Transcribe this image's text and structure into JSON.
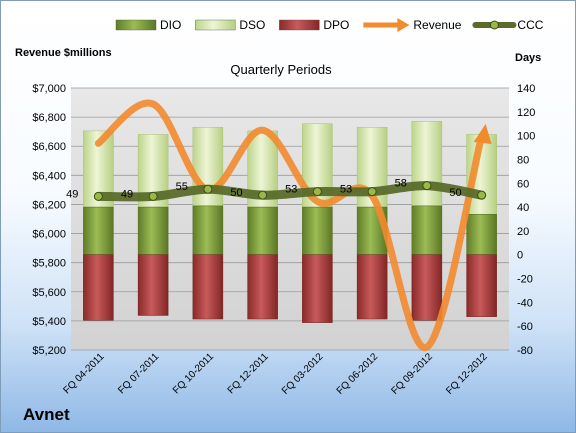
{
  "company": "Avnet",
  "chart_data": {
    "type": "bar",
    "title": "Quarterly Periods",
    "categories": [
      "FQ 04-2011",
      "FQ 07-2011",
      "FQ 10-2011",
      "FQ 12-2011",
      "FQ 03-2012",
      "FQ 06-2012",
      "FQ 09-2012",
      "FQ 12-2012"
    ],
    "left_axis": {
      "label": "Revenue $millions",
      "range": [
        5200,
        7000
      ],
      "ticks": [
        "$5,200",
        "$5,400",
        "$5,600",
        "$5,800",
        "$6,000",
        "$6,200",
        "$6,400",
        "$6,600",
        "$6,800",
        "$7,000"
      ]
    },
    "right_axis": {
      "label": "Days",
      "range": [
        -80,
        140
      ],
      "ticks": [
        "-80",
        "-60",
        "-40",
        "-20",
        "0",
        "20",
        "40",
        "60",
        "80",
        "100",
        "120",
        "140"
      ]
    },
    "series": [
      {
        "name": "DIO",
        "stack_top_days": [
          40,
          40,
          41,
          40,
          40,
          40,
          41,
          34
        ],
        "color": "#7a9a3c"
      },
      {
        "name": "DSO",
        "stack_top_days": [
          104,
          101,
          107,
          104,
          110,
          107,
          112,
          101
        ],
        "color": "#d6e6a8"
      },
      {
        "name": "DPO",
        "stack_bottom_days": [
          -55,
          -51,
          -54,
          -54,
          -57,
          -54,
          -55,
          -52
        ],
        "color": "#a83c3c"
      },
      {
        "name": "Revenue",
        "values": [
          6620,
          6890,
          6300,
          6710,
          6220,
          6260,
          5220,
          6670
        ],
        "color": "#f28a2e"
      },
      {
        "name": "CCC",
        "values": [
          49,
          49,
          55,
          50,
          53,
          53,
          58,
          50
        ],
        "color": "#6b7e34"
      }
    ],
    "ccc_labels": [
      "49",
      "49",
      "55",
      "50",
      "53",
      "53",
      "58",
      "50"
    ],
    "legend_position": "top",
    "grid": true
  }
}
